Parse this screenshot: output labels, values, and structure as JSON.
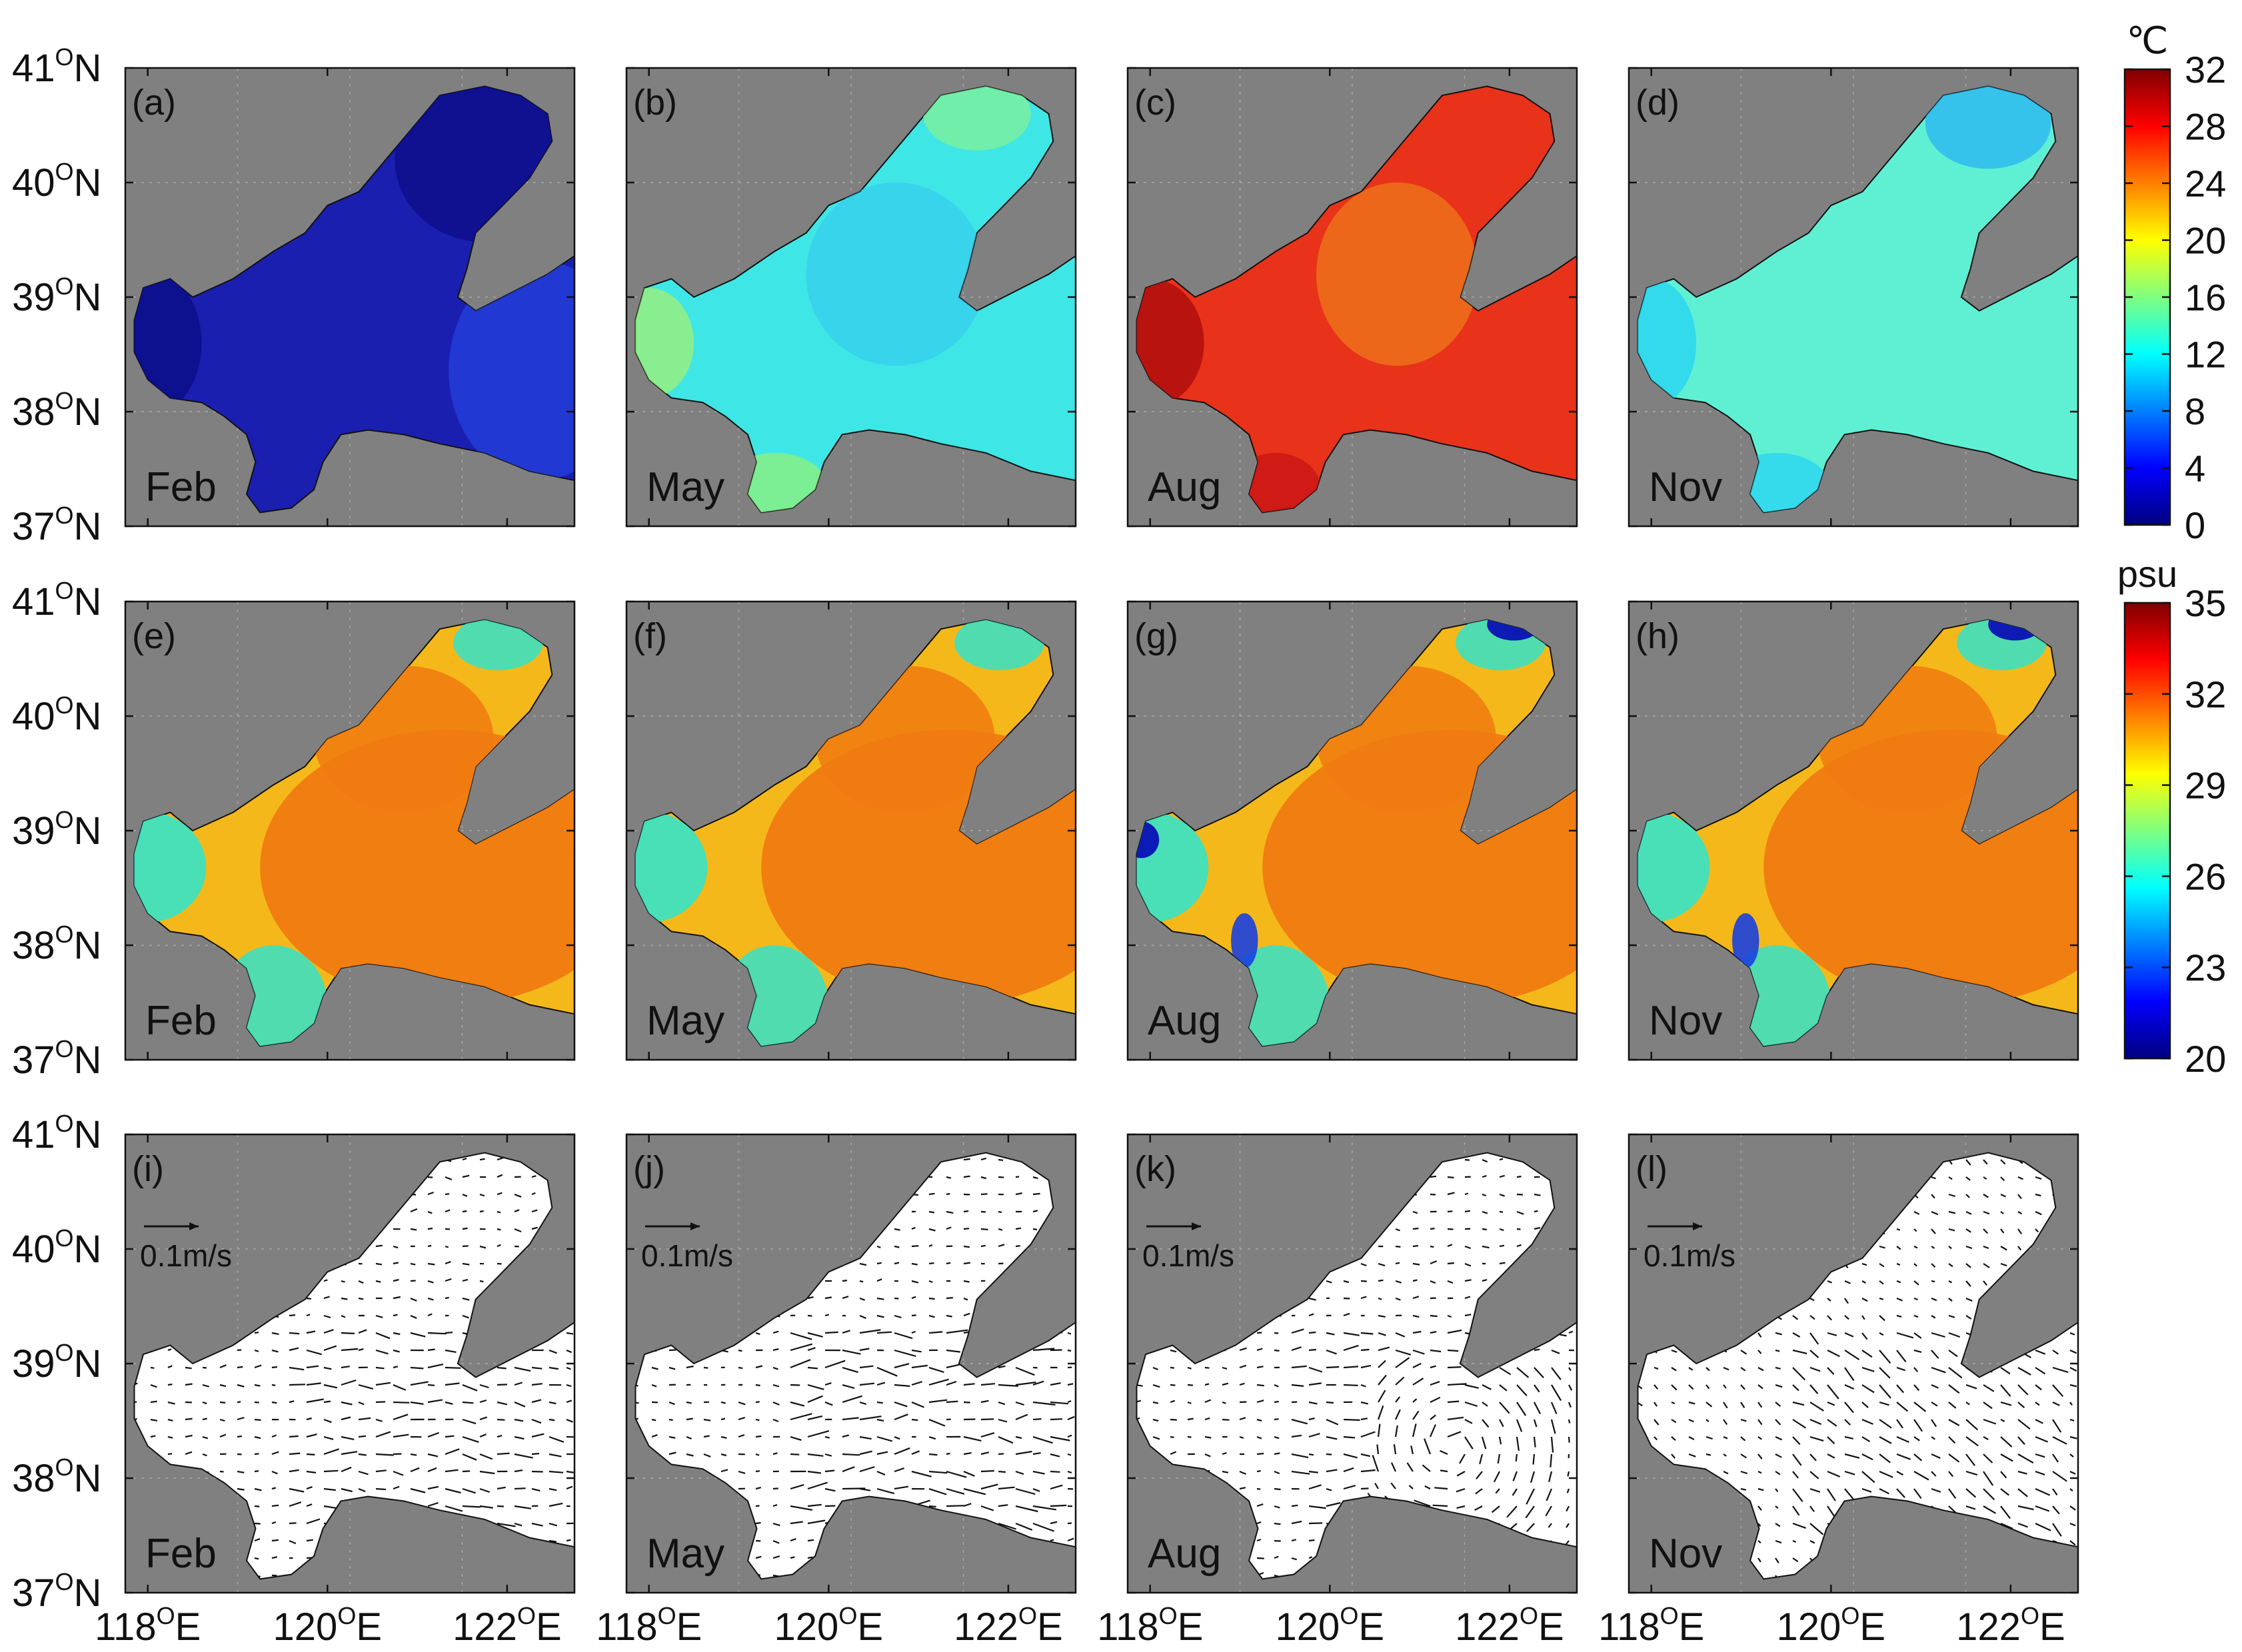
{
  "figure": {
    "panels": [
      {
        "id": "a",
        "label": "(a)",
        "month": "Feb",
        "field": "temperature"
      },
      {
        "id": "b",
        "label": "(b)",
        "month": "May",
        "field": "temperature"
      },
      {
        "id": "c",
        "label": "(c)",
        "month": "Aug",
        "field": "temperature"
      },
      {
        "id": "d",
        "label": "(d)",
        "month": "Nov",
        "field": "temperature"
      },
      {
        "id": "e",
        "label": "(e)",
        "month": "Feb",
        "field": "salinity"
      },
      {
        "id": "f",
        "label": "(f)",
        "month": "May",
        "field": "salinity"
      },
      {
        "id": "g",
        "label": "(g)",
        "month": "Aug",
        "field": "salinity"
      },
      {
        "id": "h",
        "label": "(h)",
        "month": "Nov",
        "field": "salinity"
      },
      {
        "id": "i",
        "label": "(i)",
        "month": "Feb",
        "field": "current",
        "scale_label": "0.1m/s"
      },
      {
        "id": "j",
        "label": "(j)",
        "month": "May",
        "field": "current",
        "scale_label": "0.1m/s"
      },
      {
        "id": "k",
        "label": "(k)",
        "month": "Aug",
        "field": "current",
        "scale_label": "0.1m/s"
      },
      {
        "id": "l",
        "label": "(l)",
        "month": "Nov",
        "field": "current",
        "scale_label": "0.1m/s"
      }
    ],
    "lat_ticks": [
      "41",
      "40",
      "39",
      "38",
      "37"
    ],
    "lat_suffix": "N",
    "lon_ticks": [
      "118",
      "120",
      "122"
    ],
    "lon_suffix": "E",
    "degree_mark": "O",
    "land_color": "#808080",
    "colorbars": {
      "temperature": {
        "unit": "℃",
        "ticks": [
          "32",
          "28",
          "24",
          "20",
          "16",
          "12",
          "8",
          "4",
          "0"
        ],
        "range": [
          0,
          32
        ]
      },
      "salinity": {
        "unit": "psu",
        "ticks": [
          "35",
          "32",
          "29",
          "26",
          "23",
          "20"
        ],
        "range": [
          20,
          35
        ]
      }
    },
    "field_colors": {
      "temp_feb": "#1a1fb0",
      "temp_may": "#3fe6e6",
      "temp_aug": "#e8321a",
      "temp_nov": "#5ff0d4",
      "salinity_interior": "#f07a10",
      "salinity_mid": "#f5b81a",
      "salinity_coast": "#3fe0c0",
      "current_sea": "#ffffff"
    }
  }
}
